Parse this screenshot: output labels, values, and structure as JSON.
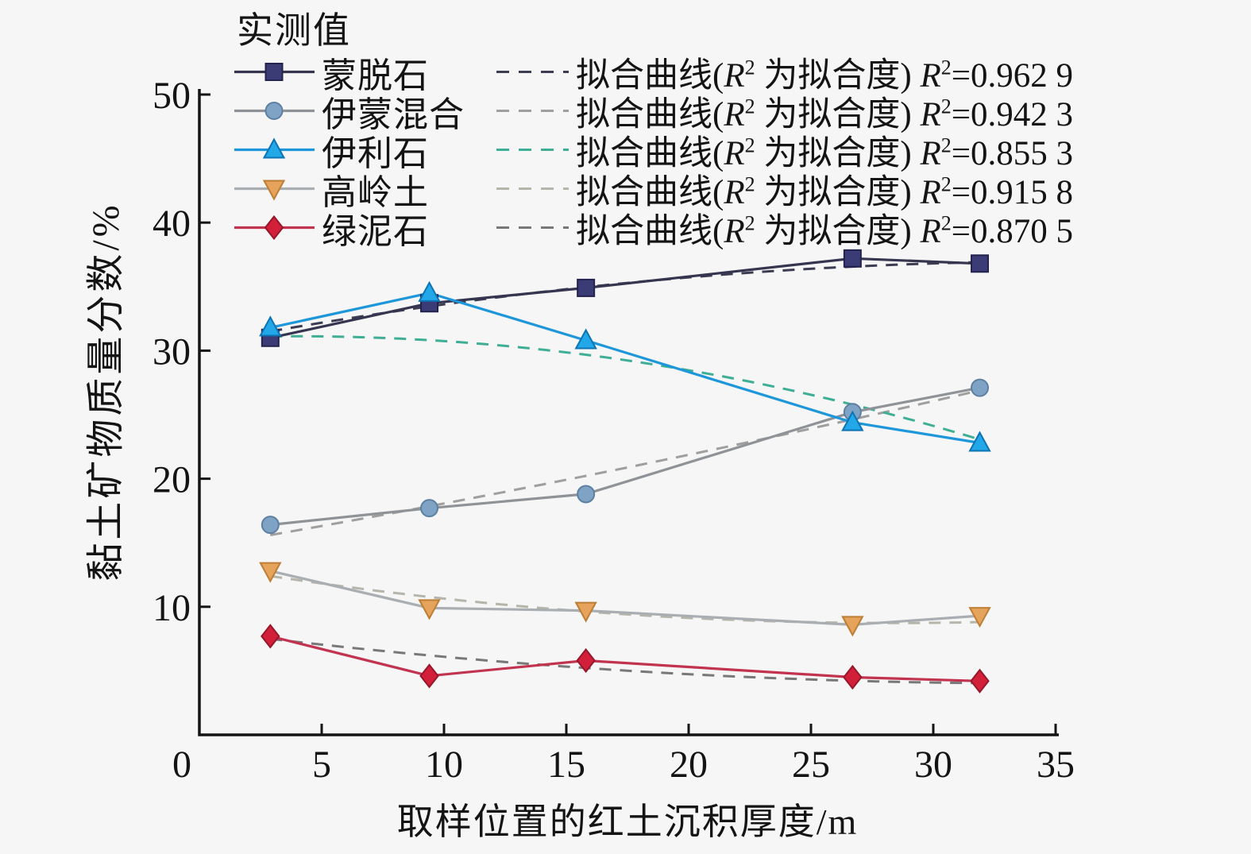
{
  "figure": {
    "background": "#f6f6f6",
    "ink": "#141414"
  },
  "legend": {
    "title": "实测值",
    "fit_prefix": "拟合曲线(",
    "r_symbol": "R",
    "superscript_two": "2",
    "fit_mid": " 为拟合度) ",
    "equals_sign": "="
  },
  "axes": {
    "x": {
      "title": "取样位置的红土沉积厚度/m",
      "ticks": [
        0,
        5,
        10,
        15,
        20,
        25,
        30,
        35
      ],
      "range": [
        0,
        35
      ]
    },
    "y": {
      "title": "黏土矿物质量分数/%",
      "ticks": [
        0,
        10,
        20,
        30,
        40,
        50
      ],
      "range": [
        0,
        50
      ]
    }
  },
  "chart_data": {
    "type": "line",
    "title": "",
    "xlabel": "取样位置的红土沉积厚度/m",
    "ylabel": "黏土矿物质量分数/%",
    "xlim": [
      0,
      35
    ],
    "ylim": [
      0,
      50
    ],
    "grid": false,
    "legend_position": "top",
    "x": [
      2.9,
      9.4,
      15.8,
      26.7,
      31.9
    ],
    "series": [
      {
        "name": "蒙脱石",
        "marker": "square",
        "marker_color": "#3b3b75",
        "marker_edge": "#23234d",
        "line_color": "#35354f",
        "values": [
          31.0,
          33.7,
          34.9,
          37.2,
          36.8
        ],
        "fit": {
          "label_r2": "0.962 9",
          "color": "#3c3c52",
          "a": 30.49,
          "b": 0.3635,
          "c": -0.005093
        }
      },
      {
        "name": "伊蒙混合",
        "marker": "circle",
        "marker_color": "#7fa3c5",
        "marker_edge": "#5d80a2",
        "line_color": "#8f9398",
        "values": [
          16.4,
          17.7,
          18.8,
          25.2,
          27.1
        ],
        "fit": {
          "label_r2": "0.942 3",
          "color": "#9f9f9f",
          "a": 14.65,
          "b": 0.3221,
          "c": 0.00194
        }
      },
      {
        "name": "伊利石",
        "marker": "triangle-up",
        "marker_color": "#22a7e8",
        "marker_edge": "#0c74b4",
        "line_color": "#1e97da",
        "values": [
          31.8,
          34.5,
          30.8,
          24.4,
          22.8
        ],
        "fit": {
          "label_r2": "0.855 3",
          "color": "#3fae96",
          "a": 30.96,
          "b": 0.0821,
          "c": -0.01033
        }
      },
      {
        "name": "高岭土",
        "marker": "triangle-down",
        "marker_color": "#e5a35b",
        "marker_edge": "#bd7e35",
        "line_color": "#a9aeb3",
        "values": [
          12.8,
          9.9,
          9.7,
          8.6,
          9.3
        ],
        "fit": {
          "label_r2": "0.915 8",
          "color": "#b5b5aa",
          "a": 13.28,
          "b": -0.3202,
          "c": 0.005635
        }
      },
      {
        "name": "绿泥石",
        "marker": "diamond",
        "marker_color": "#d3203a",
        "marker_edge": "#96172a",
        "line_color": "#c23350",
        "values": [
          7.7,
          4.6,
          5.8,
          4.5,
          4.2
        ],
        "fit": {
          "label_r2": "0.870 5",
          "color": "#787878",
          "a": 8.17,
          "b": -0.2429,
          "c": 0.00356
        }
      }
    ]
  }
}
